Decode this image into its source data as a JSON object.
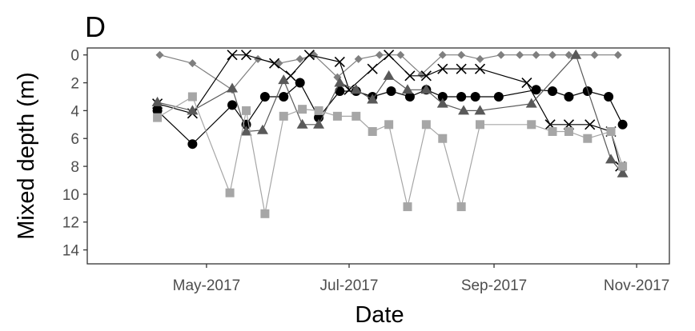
{
  "chart_data": {
    "type": "line",
    "panel_label": "D",
    "xlabel": "Date",
    "ylabel": "Mixed depth (m)",
    "x_axis": {
      "type": "date",
      "range": [
        "2017-03-11",
        "2017-11-15"
      ],
      "ticks": [
        {
          "date": "2017-05-01",
          "label": "May-2017"
        },
        {
          "date": "2017-07-01",
          "label": "Jul-2017"
        },
        {
          "date": "2017-09-01",
          "label": "Sep-2017"
        },
        {
          "date": "2017-11-01",
          "label": "Nov-2017"
        }
      ]
    },
    "y_axis": {
      "reversed": true,
      "range": [
        -0.5,
        15
      ],
      "ticks": [
        0,
        2,
        4,
        6,
        8,
        10,
        12,
        14
      ]
    },
    "grid": false,
    "legend": "none",
    "series": [
      {
        "marker": "diamond",
        "color": "#7f7f7f",
        "points": [
          [
            "2017-04-11",
            0
          ],
          [
            "2017-04-25",
            0.6
          ],
          [
            "2017-05-12",
            2.5
          ],
          [
            "2017-05-23",
            0.3
          ],
          [
            "2017-06-01",
            0.6
          ],
          [
            "2017-06-10",
            0.3
          ],
          [
            "2017-06-16",
            0
          ],
          [
            "2017-06-26",
            1.6
          ],
          [
            "2017-07-05",
            0.3
          ],
          [
            "2017-07-14",
            0
          ],
          [
            "2017-07-23",
            0
          ],
          [
            "2017-08-01",
            1.4
          ],
          [
            "2017-08-10",
            0
          ],
          [
            "2017-08-18",
            0
          ],
          [
            "2017-08-26",
            0.3
          ],
          [
            "2017-09-04",
            0
          ],
          [
            "2017-09-12",
            0
          ],
          [
            "2017-09-19",
            0
          ],
          [
            "2017-09-26",
            0
          ],
          [
            "2017-10-03",
            0
          ],
          [
            "2017-10-14",
            0
          ],
          [
            "2017-10-24",
            0
          ]
        ]
      },
      {
        "marker": "x",
        "color": "#000000",
        "points": [
          [
            "2017-04-10",
            3.5
          ],
          [
            "2017-04-25",
            4.2
          ],
          [
            "2017-05-12",
            0
          ],
          [
            "2017-05-18",
            0
          ],
          [
            "2017-05-30",
            0.6
          ],
          [
            "2017-06-06",
            1.5
          ],
          [
            "2017-06-14",
            0
          ],
          [
            "2017-06-27",
            0.5
          ],
          [
            "2017-07-01",
            2.5
          ],
          [
            "2017-07-11",
            1.0
          ],
          [
            "2017-07-18",
            0
          ],
          [
            "2017-07-27",
            1.5
          ],
          [
            "2017-08-03",
            1.5
          ],
          [
            "2017-08-10",
            1.0
          ],
          [
            "2017-08-18",
            1.0
          ],
          [
            "2017-08-26",
            1.0
          ],
          [
            "2017-09-15",
            2.0
          ],
          [
            "2017-09-25",
            5.0
          ],
          [
            "2017-10-03",
            5.0
          ],
          [
            "2017-10-12",
            5.0
          ],
          [
            "2017-10-21",
            5.5
          ],
          [
            "2017-10-25",
            8.0
          ]
        ]
      },
      {
        "marker": "circle",
        "color": "#000000",
        "points": [
          [
            "2017-04-10",
            4.0
          ],
          [
            "2017-04-25",
            6.4
          ],
          [
            "2017-05-12",
            3.6
          ],
          [
            "2017-05-18",
            5.0
          ],
          [
            "2017-05-26",
            3.0
          ],
          [
            "2017-06-03",
            3.0
          ],
          [
            "2017-06-10",
            2.0
          ],
          [
            "2017-06-18",
            4.5
          ],
          [
            "2017-06-27",
            2.6
          ],
          [
            "2017-07-04",
            2.6
          ],
          [
            "2017-07-11",
            3.0
          ],
          [
            "2017-07-19",
            2.6
          ],
          [
            "2017-07-27",
            3.0
          ],
          [
            "2017-08-03",
            2.5
          ],
          [
            "2017-08-10",
            3.0
          ],
          [
            "2017-08-18",
            3.0
          ],
          [
            "2017-08-24",
            3.0
          ],
          [
            "2017-09-03",
            3.0
          ],
          [
            "2017-09-19",
            2.5
          ],
          [
            "2017-09-26",
            2.6
          ],
          [
            "2017-10-03",
            3.0
          ],
          [
            "2017-10-11",
            2.6
          ],
          [
            "2017-10-20",
            3.0
          ],
          [
            "2017-10-26",
            5.0
          ]
        ]
      },
      {
        "marker": "triangle",
        "color": "#595959",
        "points": [
          [
            "2017-04-10",
            3.4
          ],
          [
            "2017-04-25",
            4.0
          ],
          [
            "2017-05-12",
            2.4
          ],
          [
            "2017-05-18",
            5.5
          ],
          [
            "2017-05-25",
            5.4
          ],
          [
            "2017-06-03",
            1.8
          ],
          [
            "2017-06-11",
            5.0
          ],
          [
            "2017-06-18",
            5.0
          ],
          [
            "2017-06-27",
            2.0
          ],
          [
            "2017-07-04",
            2.5
          ],
          [
            "2017-07-11",
            3.2
          ],
          [
            "2017-07-18",
            1.5
          ],
          [
            "2017-07-26",
            2.5
          ],
          [
            "2017-08-03",
            2.5
          ],
          [
            "2017-08-10",
            3.5
          ],
          [
            "2017-08-19",
            4.0
          ],
          [
            "2017-08-26",
            4.0
          ],
          [
            "2017-09-17",
            3.5
          ],
          [
            "2017-10-06",
            0
          ],
          [
            "2017-10-21",
            7.5
          ],
          [
            "2017-10-26",
            8.5
          ]
        ]
      },
      {
        "marker": "square",
        "color": "#a6a6a6",
        "points": [
          [
            "2017-04-10",
            4.5
          ],
          [
            "2017-04-25",
            3.0
          ],
          [
            "2017-05-11",
            9.9
          ],
          [
            "2017-05-18",
            4.0
          ],
          [
            "2017-05-26",
            11.4
          ],
          [
            "2017-06-03",
            4.4
          ],
          [
            "2017-06-11",
            3.9
          ],
          [
            "2017-06-18",
            4.0
          ],
          [
            "2017-06-26",
            4.4
          ],
          [
            "2017-07-04",
            4.4
          ],
          [
            "2017-07-11",
            5.5
          ],
          [
            "2017-07-18",
            5.0
          ],
          [
            "2017-07-26",
            10.9
          ],
          [
            "2017-08-03",
            5.0
          ],
          [
            "2017-08-10",
            6.0
          ],
          [
            "2017-08-18",
            10.9
          ],
          [
            "2017-08-26",
            5.0
          ],
          [
            "2017-09-17",
            5.0
          ],
          [
            "2017-09-26",
            5.5
          ],
          [
            "2017-10-03",
            5.5
          ],
          [
            "2017-10-11",
            6.0
          ],
          [
            "2017-10-21",
            5.5
          ],
          [
            "2017-10-26",
            8.0
          ]
        ]
      }
    ]
  }
}
